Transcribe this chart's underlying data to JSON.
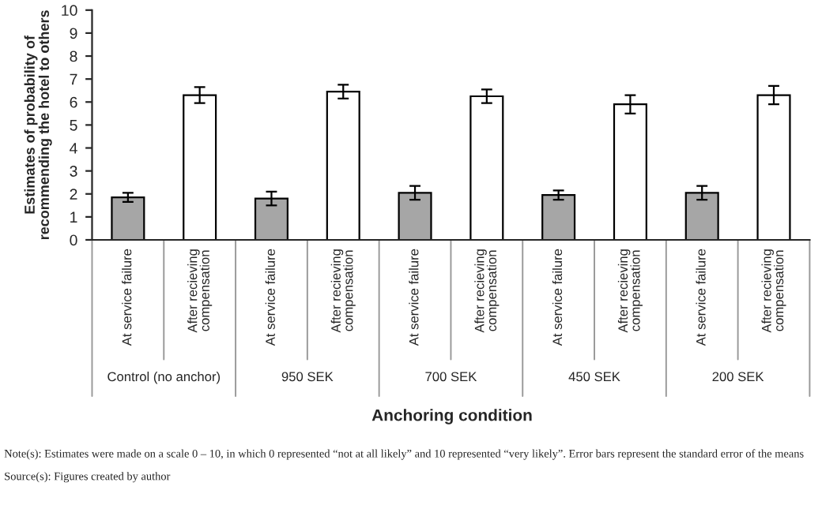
{
  "chart_data": {
    "type": "bar",
    "categories": [
      "At service failure",
      "After recieving compensation",
      "At service failure",
      "After recieving compensation",
      "At service failure",
      "After recieving compensation",
      "At service failure",
      "After recieving compensation",
      "At service failure",
      "After recieving compensation"
    ],
    "values": [
      1.85,
      6.3,
      1.8,
      6.45,
      2.05,
      6.25,
      1.95,
      5.9,
      2.05,
      6.3
    ],
    "errors": [
      0.2,
      0.35,
      0.3,
      0.3,
      0.3,
      0.3,
      0.2,
      0.4,
      0.3,
      0.4
    ],
    "colors": [
      "#a6a6a6",
      "#ffffff",
      "#a6a6a6",
      "#ffffff",
      "#a6a6a6",
      "#ffffff",
      "#a6a6a6",
      "#ffffff",
      "#a6a6a6",
      "#ffffff"
    ],
    "ylim": [
      0,
      10
    ],
    "yticks": [
      0,
      1,
      2,
      3,
      4,
      5,
      6,
      7,
      8,
      9,
      10
    ],
    "xlabel": "Anchoring condition",
    "ylabel": "Estimates of probability of\nrecommending the hotel to others",
    "grid": false,
    "legend": false,
    "annotations": [
      "Control (no anchor)",
      "950 SEK",
      "700 SEK",
      "450 SEK",
      "200 SEK",
      "Note(s): Estimates were made on a scale 0 – 10, in which 0 represented “not at all likely” and 10 represented “very likely”. Error bars represent the standard error of the means",
      "Source(s): Figures created by author"
    ]
  }
}
